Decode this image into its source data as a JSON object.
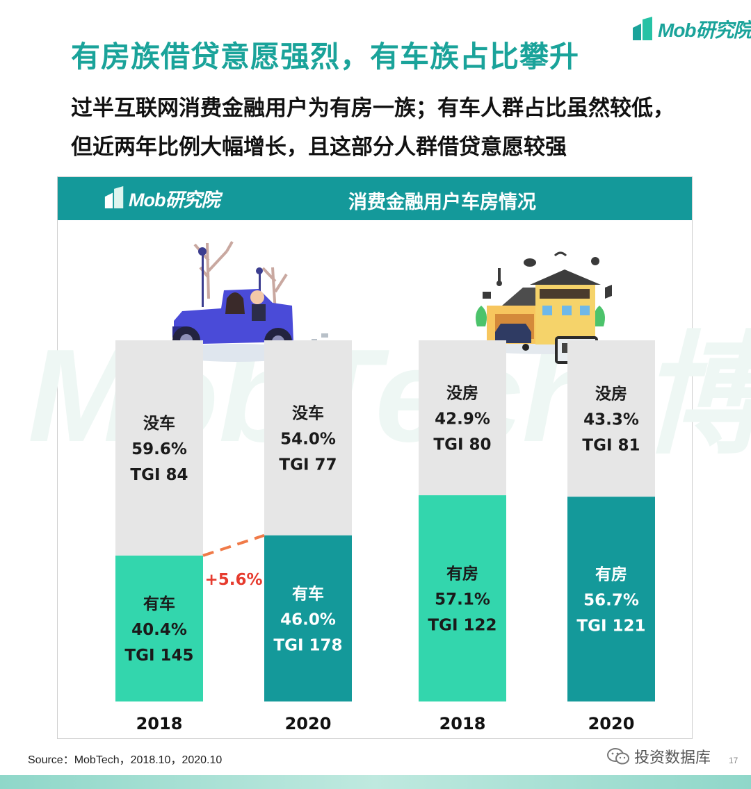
{
  "header": {
    "title": "有房族借贷意愿强烈，有车族占比攀升",
    "subtitle": "过半互联网消费金融用户为有房一族；有车人群占比虽然较低，但近两年比例大幅增长，且这部分人群借贷意愿较强",
    "brand": "Mob研究院"
  },
  "panel": {
    "brand": "Mob研究院",
    "title": "消费金融用户车房情况",
    "watermark": "MobTech 博"
  },
  "chart_data": {
    "type": "bar",
    "stacked": true,
    "unit": "%",
    "categories": [
      "2018",
      "2020",
      "2018",
      "2020"
    ],
    "groups": [
      {
        "bars": [
          {
            "year": "2018",
            "bottom": {
              "label": "有车",
              "pct": "40.4%",
              "tgi": "TGI 145",
              "value": 40.4
            },
            "top": {
              "label": "没车",
              "pct": "59.6%",
              "tgi": "TGI 84",
              "value": 59.6
            }
          },
          {
            "year": "2020",
            "bottom": {
              "label": "有车",
              "pct": "46.0%",
              "tgi": "TGI 178",
              "value": 46.0
            },
            "top": {
              "label": "没车",
              "pct": "54.0%",
              "tgi": "TGI 77",
              "value": 54.0
            }
          }
        ],
        "bottom_colors": [
          "#33d6ad",
          "#14999a"
        ],
        "annotation": "+5.6%"
      },
      {
        "bars": [
          {
            "year": "2018",
            "bottom": {
              "label": "有房",
              "pct": "57.1%",
              "tgi": "TGI 122",
              "value": 57.1
            },
            "top": {
              "label": "没房",
              "pct": "42.9%",
              "tgi": "TGI 80",
              "value": 42.9
            }
          },
          {
            "year": "2020",
            "bottom": {
              "label": "有房",
              "pct": "56.7%",
              "tgi": "TGI 121",
              "value": 56.7
            },
            "top": {
              "label": "没房",
              "pct": "43.3%",
              "tgi": "TGI 81",
              "value": 43.3
            }
          }
        ],
        "bottom_colors": [
          "#33d6ad",
          "#14999a"
        ]
      }
    ],
    "top_color": "#e6e6e6",
    "annotation_color": "#e63b2e",
    "ylim": [
      0,
      100
    ]
  },
  "footer": {
    "source": "Source：MobTech，2018.10，2020.10",
    "wechat": "投资数据库",
    "page": "17"
  }
}
